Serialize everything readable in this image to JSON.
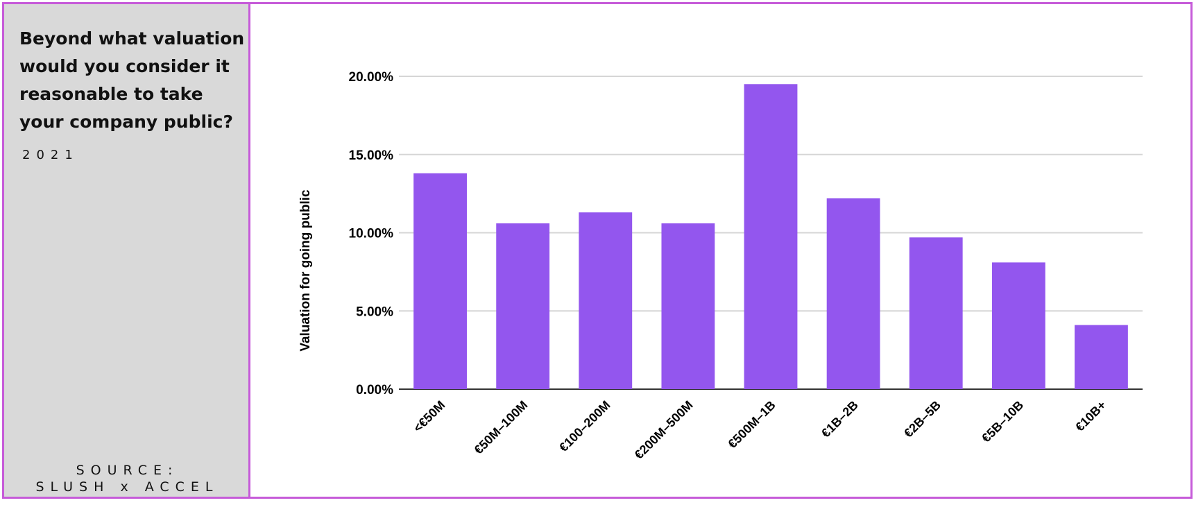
{
  "sidebar": {
    "title": "Beyond what valuation would you consider it reasonable to take your company public?",
    "year": "2021",
    "source_line1": "SOURCE:",
    "source_line2": "SLUSH x ACCEL"
  },
  "colors": {
    "frame": "#c65bd9",
    "sidebar_bg": "#d9d9d9",
    "bar": "#9356ee",
    "grid": "#d6d6d6",
    "axis": "#333333"
  },
  "chart_data": {
    "type": "bar",
    "categories": [
      "<€50M",
      "€50M–100M",
      "€100–200M",
      "€200M–500M",
      "€500M–1B",
      "€1B–2B",
      "€2B–5B",
      "€5B–10B",
      "€10B+"
    ],
    "values": [
      13.8,
      10.6,
      11.3,
      10.6,
      19.5,
      12.2,
      9.7,
      8.1,
      4.1
    ],
    "ylabel": "Valuation for going public",
    "ylim": [
      0,
      20
    ],
    "yticks": [
      0,
      5,
      10,
      15,
      20
    ],
    "ytick_labels": [
      "0.00%",
      "5.00%",
      "10.00%",
      "15.00%",
      "20.00%"
    ],
    "grid": true,
    "legend": "none"
  }
}
